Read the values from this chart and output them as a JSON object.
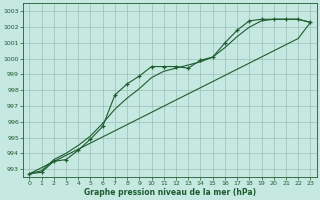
{
  "title": "",
  "xlabel": "Graphe pression niveau de la mer (hPa)",
  "background_color": "#c5e8e0",
  "grid_color": "#9dbfb8",
  "line_color": "#1e5c30",
  "xlim": [
    -0.5,
    23.5
  ],
  "ylim": [
    992.5,
    1003.5
  ],
  "yticks": [
    993,
    994,
    995,
    996,
    997,
    998,
    999,
    1000,
    1001,
    1002,
    1003
  ],
  "xticks": [
    0,
    1,
    2,
    3,
    4,
    5,
    6,
    7,
    8,
    9,
    10,
    11,
    12,
    13,
    14,
    15,
    16,
    17,
    18,
    19,
    20,
    21,
    22,
    23
  ],
  "x": [
    0,
    1,
    2,
    3,
    4,
    5,
    6,
    7,
    8,
    9,
    10,
    11,
    12,
    13,
    14,
    15,
    16,
    17,
    18,
    19,
    20,
    21,
    22,
    23
  ],
  "y_jagged": [
    992.7,
    992.8,
    993.5,
    993.6,
    994.2,
    994.9,
    995.7,
    997.7,
    998.4,
    998.9,
    999.5,
    999.5,
    999.5,
    999.4,
    999.9,
    1000.1,
    1001.0,
    1001.8,
    1002.4,
    1002.5,
    1002.5,
    1002.5,
    1002.5,
    1002.3
  ],
  "y_smooth": [
    992.7,
    992.9,
    993.6,
    994.0,
    994.5,
    995.1,
    995.9,
    996.8,
    997.5,
    998.1,
    998.8,
    999.2,
    999.4,
    999.6,
    999.8,
    1000.1,
    1000.7,
    1001.4,
    1002.0,
    1002.4,
    1002.5,
    1002.5,
    1002.5,
    1002.3
  ],
  "y_straight": [
    992.7,
    993.09,
    993.48,
    993.87,
    994.26,
    994.65,
    995.04,
    995.43,
    995.82,
    996.21,
    996.6,
    996.99,
    997.38,
    997.77,
    998.16,
    998.55,
    998.94,
    999.33,
    999.72,
    1000.11,
    1000.5,
    1000.89,
    1001.28,
    1002.3
  ]
}
